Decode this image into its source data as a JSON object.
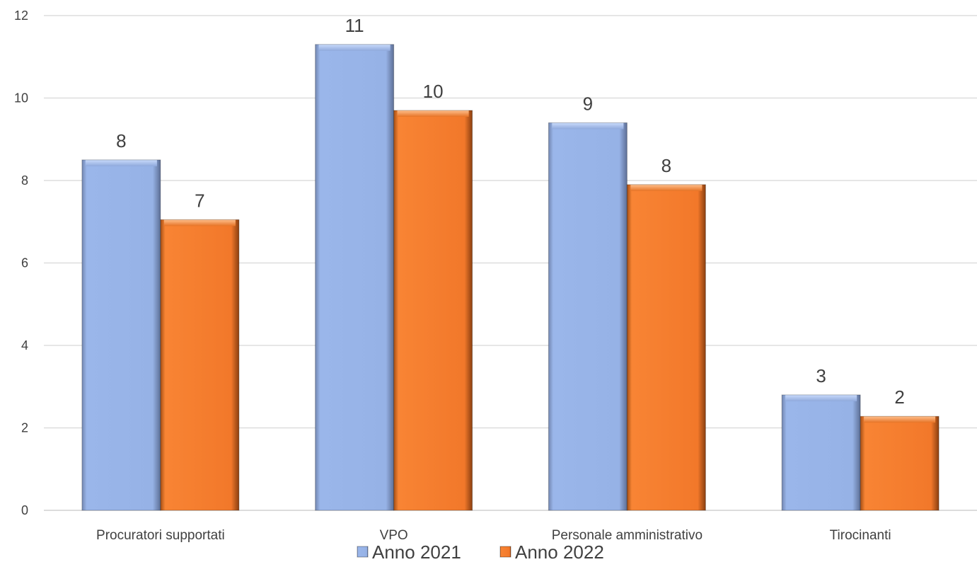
{
  "chart_data": {
    "type": "bar",
    "categories": [
      "Procuratori supportati",
      "VPO",
      "Personale amministrativo",
      "Tirocinanti"
    ],
    "series": [
      {
        "name": "Anno 2021",
        "values": [
          8.5,
          11.3,
          9.4,
          2.8
        ],
        "labels": [
          "8",
          "11",
          "9",
          "3"
        ],
        "color": "#95B3E8"
      },
      {
        "name": "Anno 2022",
        "values": [
          7.05,
          9.7,
          7.9,
          2.28
        ],
        "labels": [
          "7",
          "10",
          "8",
          "2"
        ],
        "color": "#F47E2E"
      }
    ],
    "yticks": [
      "0",
      "2",
      "4",
      "6",
      "8",
      "10",
      "12"
    ],
    "ylim": [
      0,
      12
    ],
    "grid": true,
    "legend": "bottom"
  }
}
